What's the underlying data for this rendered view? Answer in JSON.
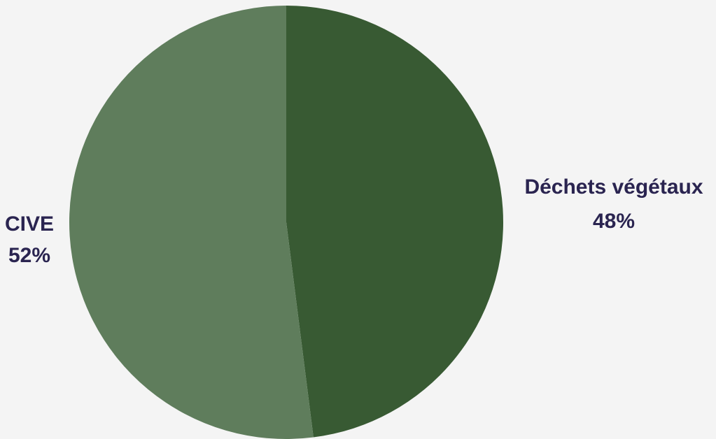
{
  "chart_data": {
    "type": "pie",
    "title": "",
    "series": [
      {
        "values": [
          48,
          52
        ],
        "labels": [
          "Déchets végétaux",
          "CIVE"
        ],
        "percent_labels": [
          "48%",
          "52%"
        ],
        "colors": [
          "#385a33",
          "#5f7d5c"
        ]
      }
    ],
    "start_angle": "12 o'clock",
    "direction": "clockwise",
    "legend": "none",
    "label_color": "#2a2450",
    "background": "#f4f4f4"
  }
}
